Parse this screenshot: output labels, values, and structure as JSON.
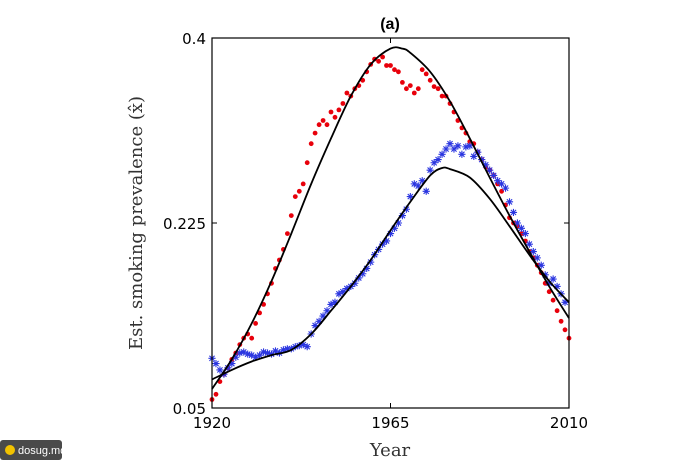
{
  "watermark": {
    "text": "dosug.md"
  },
  "chart_data": {
    "type": "scatter",
    "title": "(a)",
    "xlabel": "Year",
    "ylabel": "Est. smoking prevalence (x̂)",
    "xlim": [
      1920,
      2010
    ],
    "ylim": [
      0.05,
      0.4
    ],
    "xticks": [
      1920,
      1965,
      2010
    ],
    "yticks": [
      0.05,
      0.225,
      0.4
    ],
    "ytick_labels": [
      "0.05",
      "0.225",
      "0.4"
    ],
    "grid": false,
    "legend": "none",
    "series": [
      {
        "marker": "dot",
        "color": "#e8000b",
        "x": [
          1920,
          1921,
          1922,
          1923,
          1924,
          1925,
          1926,
          1927,
          1928,
          1929,
          1930,
          1931,
          1932,
          1933,
          1934,
          1935,
          1936,
          1937,
          1938,
          1939,
          1940,
          1941,
          1942,
          1943,
          1944,
          1945,
          1946,
          1947,
          1948,
          1949,
          1950,
          1951,
          1952,
          1953,
          1954,
          1955,
          1956,
          1957,
          1958,
          1959,
          1960,
          1961,
          1962,
          1963,
          1964,
          1965,
          1966,
          1967,
          1968,
          1969,
          1970,
          1971,
          1972,
          1973,
          1974,
          1975,
          1976,
          1977,
          1978,
          1979,
          1980,
          1981,
          1982,
          1983,
          1984,
          1985,
          1986,
          1987,
          1988,
          1989,
          1990,
          1991,
          1992,
          1993,
          1994,
          1995,
          1996,
          1997,
          1998,
          1999,
          2000,
          2001,
          2002,
          2003,
          2004,
          2005,
          2006,
          2007,
          2008,
          2009,
          2010
        ],
        "y": [
          0.058,
          0.063,
          0.075,
          0.082,
          0.088,
          0.096,
          0.102,
          0.11,
          0.116,
          0.12,
          0.116,
          0.13,
          0.14,
          0.148,
          0.158,
          0.168,
          0.182,
          0.19,
          0.2,
          0.215,
          0.232,
          0.25,
          0.255,
          0.262,
          0.282,
          0.3,
          0.31,
          0.318,
          0.322,
          0.318,
          0.33,
          0.325,
          0.332,
          0.338,
          0.348,
          0.345,
          0.352,
          0.355,
          0.36,
          0.368,
          0.375,
          0.38,
          0.378,
          0.382,
          0.374,
          0.374,
          0.37,
          0.368,
          0.358,
          0.352,
          0.355,
          0.348,
          0.352,
          0.37,
          0.366,
          0.36,
          0.354,
          0.352,
          0.345,
          0.345,
          0.338,
          0.33,
          0.322,
          0.315,
          0.31,
          0.302,
          0.3,
          0.292,
          0.285,
          0.278,
          0.275,
          0.27,
          0.262,
          0.255,
          0.242,
          0.23,
          0.225,
          0.222,
          0.215,
          0.208,
          0.198,
          0.192,
          0.185,
          0.178,
          0.168,
          0.16,
          0.152,
          0.142,
          0.132,
          0.124,
          0.116
        ]
      },
      {
        "marker": "star",
        "color": "#2a35e0",
        "x": [
          1920,
          1921,
          1922,
          1923,
          1924,
          1925,
          1926,
          1927,
          1928,
          1929,
          1930,
          1931,
          1932,
          1933,
          1934,
          1935,
          1936,
          1937,
          1938,
          1939,
          1940,
          1941,
          1942,
          1943,
          1944,
          1945,
          1946,
          1947,
          1948,
          1949,
          1950,
          1951,
          1952,
          1953,
          1954,
          1955,
          1956,
          1957,
          1958,
          1959,
          1960,
          1961,
          1962,
          1963,
          1964,
          1965,
          1966,
          1967,
          1968,
          1969,
          1970,
          1971,
          1972,
          1973,
          1974,
          1975,
          1976,
          1977,
          1978,
          1979,
          1980,
          1981,
          1982,
          1983,
          1984,
          1985,
          1986,
          1987,
          1988,
          1989,
          1990,
          1991,
          1992,
          1993,
          1994,
          1995,
          1996,
          1997,
          1998,
          1999,
          2000,
          2001,
          2002,
          2003,
          2004,
          2005,
          2006,
          2007,
          2008,
          2009
        ],
        "y": [
          0.097,
          0.092,
          0.086,
          0.082,
          0.088,
          0.092,
          0.098,
          0.102,
          0.103,
          0.101,
          0.1,
          0.098,
          0.1,
          0.103,
          0.102,
          0.101,
          0.104,
          0.102,
          0.105,
          0.106,
          0.106,
          0.108,
          0.109,
          0.11,
          0.108,
          0.12,
          0.128,
          0.132,
          0.137,
          0.142,
          0.148,
          0.15,
          0.158,
          0.16,
          0.163,
          0.165,
          0.168,
          0.173,
          0.177,
          0.182,
          0.188,
          0.195,
          0.2,
          0.205,
          0.208,
          0.215,
          0.22,
          0.225,
          0.232,
          0.238,
          0.25,
          0.262,
          0.26,
          0.265,
          0.255,
          0.275,
          0.282,
          0.285,
          0.29,
          0.295,
          0.3,
          0.295,
          0.298,
          0.29,
          0.297,
          0.298,
          0.288,
          0.292,
          0.285,
          0.28,
          0.275,
          0.27,
          0.265,
          0.262,
          0.258,
          0.245,
          0.235,
          0.225,
          0.22,
          0.215,
          0.205,
          0.198,
          0.192,
          0.185,
          0.176,
          0.168,
          0.172,
          0.165,
          0.158,
          0.15
        ]
      }
    ],
    "fits": [
      {
        "color": "#000000",
        "x": [
          1920,
          1925,
          1930,
          1935,
          1940,
          1945,
          1950,
          1955,
          1960,
          1965,
          1968,
          1970,
          1975,
          1980,
          1985,
          1990,
          1995,
          2000,
          2005,
          2010
        ],
        "y": [
          0.068,
          0.096,
          0.13,
          0.17,
          0.215,
          0.262,
          0.305,
          0.345,
          0.375,
          0.39,
          0.39,
          0.386,
          0.368,
          0.34,
          0.305,
          0.268,
          0.232,
          0.198,
          0.165,
          0.135
        ]
      },
      {
        "color": "#000000",
        "x": [
          1920,
          1925,
          1930,
          1935,
          1940,
          1945,
          1950,
          1955,
          1960,
          1965,
          1970,
          1975,
          1978,
          1980,
          1985,
          1990,
          1995,
          2000,
          2005,
          2010
        ],
        "y": [
          0.077,
          0.086,
          0.094,
          0.1,
          0.105,
          0.12,
          0.142,
          0.165,
          0.19,
          0.218,
          0.245,
          0.27,
          0.277,
          0.276,
          0.268,
          0.248,
          0.222,
          0.195,
          0.17,
          0.15
        ]
      }
    ]
  }
}
